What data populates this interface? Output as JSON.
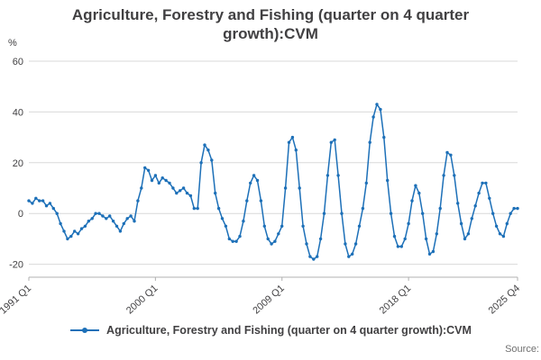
{
  "chart_data": {
    "type": "line",
    "title": "Agriculture, Forestry and Fishing (quarter on 4 quarter growth):CVM",
    "ylabel": "%",
    "ylim": [
      -20,
      60
    ],
    "y_ticks": [
      60,
      40,
      20,
      0,
      -20
    ],
    "x_tick_labels": [
      "1991 Q1",
      "2000 Q1",
      "2009 Q1",
      "2018 Q1",
      "2025 Q4"
    ],
    "x_start": "1991 Q1",
    "x_end": "2025 Q4",
    "x_frequency": "quarterly",
    "grid": true,
    "markers": true,
    "legend_position": "bottom",
    "series": [
      {
        "name": "Agriculture, Forestry and Fishing (quarter on 4 quarter growth):CVM",
        "values": [
          5,
          4,
          6,
          5,
          5,
          3,
          4,
          2,
          0,
          -4,
          -7,
          -10,
          -9,
          -7,
          -8,
          -6,
          -5,
          -3,
          -2,
          0,
          0,
          -1,
          -2,
          -1,
          -3,
          -5,
          -7,
          -4,
          -2,
          -1,
          -3,
          5,
          10,
          18,
          17,
          13,
          15,
          12,
          14,
          13,
          12,
          10,
          8,
          9,
          10,
          8,
          7,
          2,
          2,
          20,
          27,
          25,
          21,
          8,
          2,
          -2,
          -5,
          -10,
          -11,
          -11,
          -9,
          -3,
          5,
          12,
          15,
          13,
          5,
          -5,
          -10,
          -12,
          -11,
          -8,
          -5,
          10,
          28,
          30,
          25,
          10,
          -5,
          -12,
          -17,
          -18,
          -17,
          -10,
          0,
          15,
          28,
          29,
          15,
          0,
          -12,
          -17,
          -16,
          -12,
          -5,
          2,
          12,
          28,
          38,
          43,
          41,
          30,
          13,
          0,
          -9,
          -13,
          -13,
          -10,
          -4,
          5,
          11,
          8,
          0,
          -10,
          -16,
          -15,
          -8,
          2,
          15,
          24,
          23,
          15,
          4,
          -4,
          -10,
          -8,
          -2,
          3,
          8,
          12,
          12,
          6,
          0,
          -5,
          -8,
          -9,
          -4,
          0,
          2,
          2
        ]
      }
    ]
  },
  "colors": {
    "line": "#1d70b8",
    "grid": "#d9d9d9",
    "axis": "#b0b0b0",
    "text": "#414042",
    "source": "#707070"
  },
  "source_label": "Source:"
}
